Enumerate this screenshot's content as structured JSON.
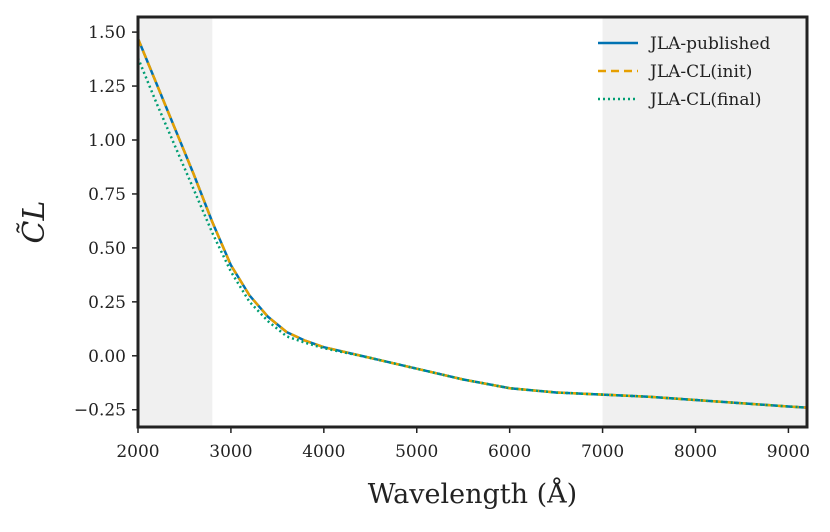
{
  "chart_data": {
    "type": "line",
    "title": "",
    "xlabel": "Wavelength (Å)",
    "ylabel": "C̃L",
    "xlim": [
      2000,
      9200
    ],
    "ylim": [
      -0.33,
      1.57
    ],
    "xticks": [
      2000,
      3000,
      4000,
      5000,
      6000,
      7000,
      8000,
      9000
    ],
    "xtick_labels": [
      "2000",
      "3000",
      "4000",
      "5000",
      "6000",
      "7000",
      "8000",
      "9000"
    ],
    "yticks": [
      -0.25,
      0.0,
      0.25,
      0.5,
      0.75,
      1.0,
      1.25,
      1.5
    ],
    "ytick_labels": [
      "−0.25",
      "0.00",
      "0.25",
      "0.50",
      "0.75",
      "1.00",
      "1.25",
      "1.50"
    ],
    "grid": false,
    "legend_position": "top-right",
    "shaded_regions": [
      {
        "x0": 2000,
        "x1": 2800,
        "color": "#f0f0f0"
      },
      {
        "x0": 7000,
        "x1": 9200,
        "color": "#f0f0f0"
      }
    ],
    "series": [
      {
        "name": "JLA-published",
        "color": "#0072b2",
        "style": "solid",
        "x": [
          2000,
          2200,
          2400,
          2600,
          2800,
          3000,
          3200,
          3400,
          3600,
          3800,
          4000,
          4500,
          5000,
          5500,
          6000,
          6500,
          7000,
          7500,
          8000,
          8500,
          9000,
          9200
        ],
        "y": [
          1.47,
          1.26,
          1.05,
          0.84,
          0.62,
          0.42,
          0.28,
          0.18,
          0.11,
          0.07,
          0.04,
          -0.01,
          -0.06,
          -0.11,
          -0.15,
          -0.17,
          -0.18,
          -0.19,
          -0.205,
          -0.22,
          -0.235,
          -0.24
        ]
      },
      {
        "name": "JLA-CL(init)",
        "color": "#e69f00",
        "style": "dashed",
        "x": [
          2000,
          2200,
          2400,
          2600,
          2800,
          3000,
          3200,
          3400,
          3600,
          3800,
          4000,
          4500,
          5000,
          5500,
          6000,
          6500,
          7000,
          7500,
          8000,
          8500,
          9000,
          9200
        ],
        "y": [
          1.47,
          1.26,
          1.05,
          0.84,
          0.62,
          0.42,
          0.28,
          0.18,
          0.11,
          0.07,
          0.04,
          -0.01,
          -0.06,
          -0.11,
          -0.15,
          -0.17,
          -0.18,
          -0.19,
          -0.205,
          -0.22,
          -0.235,
          -0.24
        ]
      },
      {
        "name": "JLA-CL(final)",
        "color": "#009e73",
        "style": "dotted",
        "x": [
          2000,
          2200,
          2400,
          2600,
          2800,
          3000,
          3200,
          3400,
          3600,
          3800,
          4000,
          4500,
          5000,
          5500,
          6000,
          6500,
          7000,
          7500,
          8000,
          8500,
          9000,
          9200
        ],
        "y": [
          1.38,
          1.17,
          0.97,
          0.77,
          0.57,
          0.39,
          0.25,
          0.16,
          0.09,
          0.06,
          0.035,
          -0.01,
          -0.06,
          -0.11,
          -0.15,
          -0.17,
          -0.18,
          -0.19,
          -0.205,
          -0.22,
          -0.235,
          -0.24
        ]
      }
    ]
  }
}
